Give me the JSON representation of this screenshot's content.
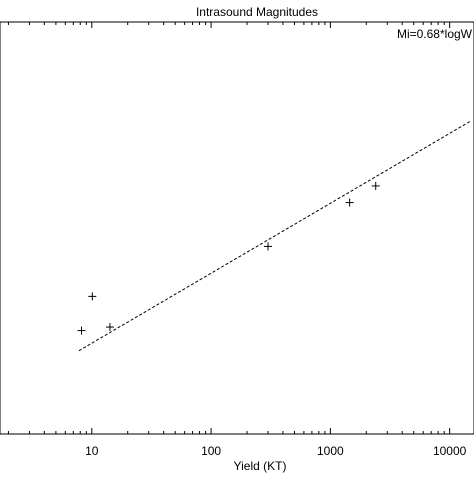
{
  "chart_data": {
    "type": "scatter",
    "title": "Intrasound Magnitudes",
    "annotation": "Mi=0.68*logW",
    "xlabel": "Yield (KT)",
    "ylabel": "",
    "x_scale": "log",
    "xlim": [
      1.7,
      16000
    ],
    "x_ticks": [
      {
        "value": 10,
        "label": "10"
      },
      {
        "value": 100,
        "label": "100"
      },
      {
        "value": 1000,
        "label": "1000"
      },
      {
        "value": 10000,
        "label": "10000"
      }
    ],
    "y_axis_scale": [
      0,
      470
    ],
    "grid": false,
    "colors": {
      "axis": "#000000",
      "points": "#000000",
      "fit_line": "#000000"
    },
    "points": [
      {
        "x": 8.2,
        "y": 118
      },
      {
        "x": 10.1,
        "y": 157
      },
      {
        "x": 14.2,
        "y": 122
      },
      {
        "x": 300,
        "y": 214
      },
      {
        "x": 1450,
        "y": 264
      },
      {
        "x": 2400,
        "y": 283
      }
    ],
    "fit_line": {
      "style": "dashed",
      "points": [
        {
          "x": 7.8,
          "y": 95
        },
        {
          "x": 15000,
          "y": 357
        }
      ]
    }
  }
}
